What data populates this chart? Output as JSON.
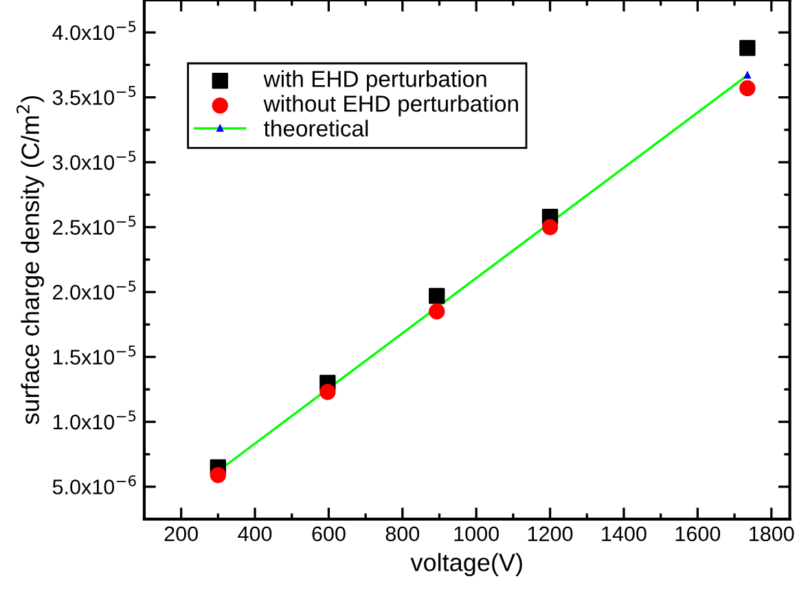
{
  "chart_data": {
    "type": "scatter",
    "xlabel": "voltage(V)",
    "ylabel": "surface charge density (C/m$^{2}$)",
    "x": [
      300,
      597,
      893,
      1200,
      1735
    ],
    "series": [
      {
        "name": "with EHD perturbation",
        "color": "#000000",
        "marker": "square",
        "values": [
          6.5e-06,
          1.3e-05,
          1.97e-05,
          2.58e-05,
          3.88e-05
        ]
      },
      {
        "name": "without EHD perturbation",
        "color": "#ff0000",
        "marker": "circle",
        "values": [
          5.9e-06,
          1.23e-05,
          1.85e-05,
          2.5e-05,
          3.57e-05
        ]
      },
      {
        "name": "theoretical",
        "type": "line",
        "color": "#00ff00",
        "marker": "triangle",
        "line_style": "solid",
        "x": [
          300,
          1735
        ],
        "values": [
          6.2e-06,
          3.67e-05
        ]
      }
    ],
    "xlim": [
      100,
      1850
    ],
    "ylim": [
      2.5e-06,
      4.25e-05
    ],
    "xticks": [
      200,
      400,
      600,
      800,
      1000,
      1200,
      1400,
      1600,
      1800
    ],
    "yticks": [
      {
        "value": 5e-06,
        "label": "5.0x10$^{−6}$"
      },
      {
        "value": 1e-05,
        "label": "1.0x10$^{−5}$"
      },
      {
        "value": 1.5e-05,
        "label": "1.5x10$^{−5}$"
      },
      {
        "value": 2e-05,
        "label": "2.0x10$^{−5}$"
      },
      {
        "value": 2.5e-05,
        "label": "2.5x10$^{−5}$"
      },
      {
        "value": 3e-05,
        "label": "3.0x10$^{−5}$"
      },
      {
        "value": 3.5e-05,
        "label": "3.5x10$^{−5}$"
      },
      {
        "value": 4e-05,
        "label": "4.0x10$^{−5}$"
      }
    ],
    "grid": false,
    "legend": "top left"
  }
}
